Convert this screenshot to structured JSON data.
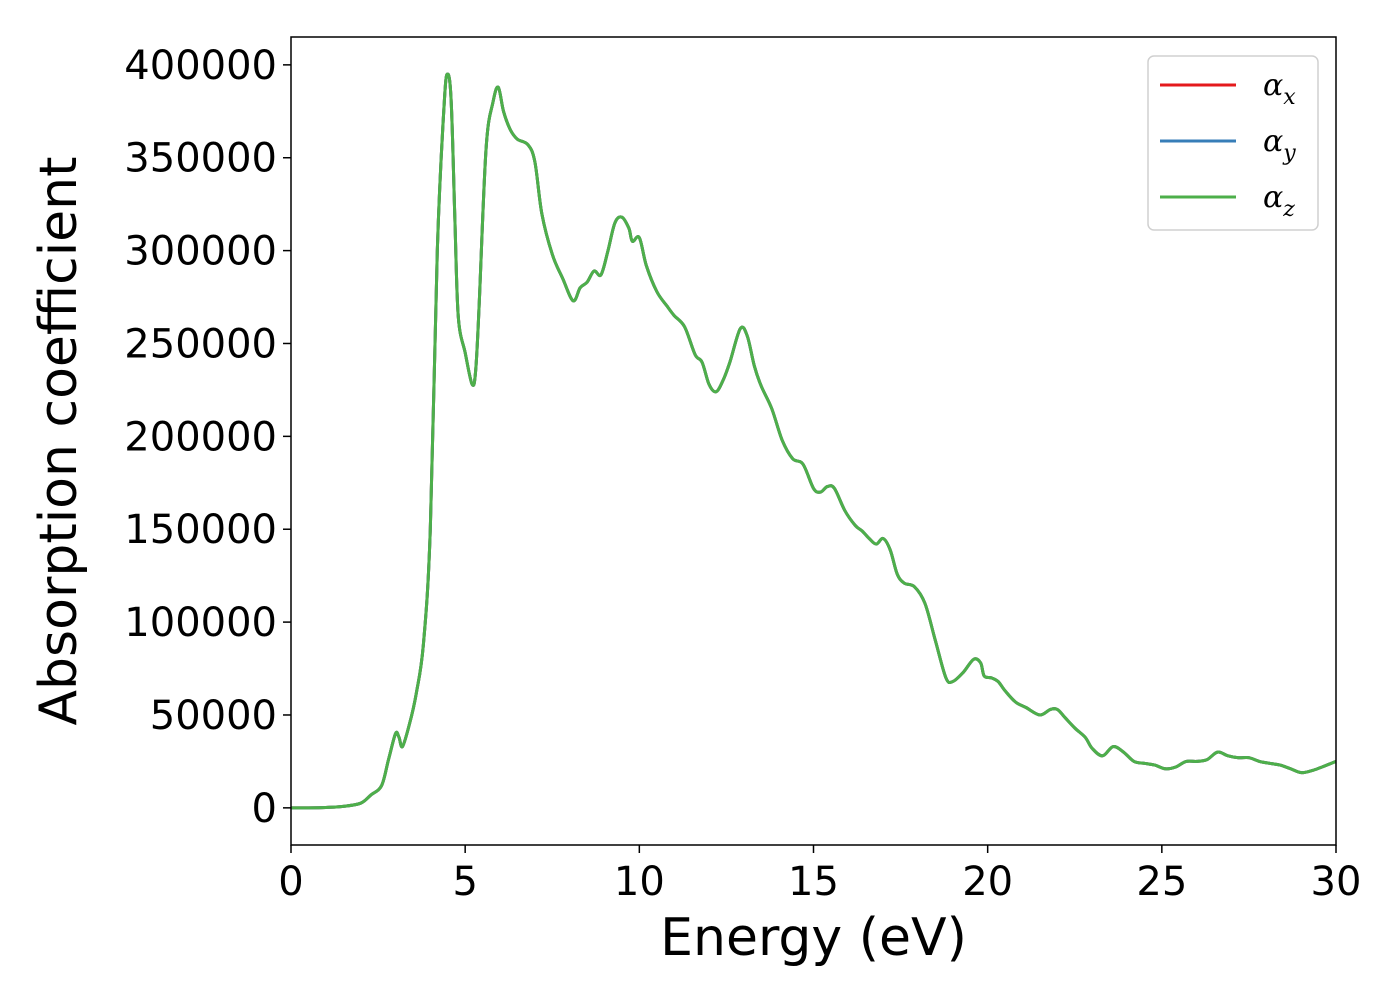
{
  "chart_data": {
    "type": "line",
    "title": "",
    "xlabel": "Energy (eV)",
    "ylabel": "Absorption coefficient",
    "xlim": [
      0,
      30
    ],
    "ylim": [
      -20000,
      415000
    ],
    "xticks": [
      "0",
      "5",
      "10",
      "15",
      "20",
      "25",
      "30"
    ],
    "yticks": [
      "0",
      "50000",
      "100000",
      "150000",
      "200000",
      "250000",
      "300000",
      "350000",
      "400000"
    ],
    "grid": false,
    "legend_position": "top-right",
    "series": [
      {
        "name": "α",
        "subscript": "x",
        "color": "#e41a1c"
      },
      {
        "name": "α",
        "subscript": "y",
        "color": "#377eb8"
      },
      {
        "name": "α",
        "subscript": "z",
        "color": "#4daf4a"
      }
    ],
    "x": [
      0,
      0.5,
      1.0,
      1.5,
      2.0,
      2.3,
      2.6,
      2.8,
      3.0,
      3.1,
      3.2,
      3.4,
      3.6,
      3.8,
      4.0,
      4.2,
      4.4,
      4.5,
      4.6,
      4.7,
      4.8,
      5.0,
      5.2,
      5.3,
      5.4,
      5.6,
      5.8,
      5.95,
      6.1,
      6.3,
      6.5,
      6.8,
      7.0,
      7.2,
      7.5,
      7.8,
      8.1,
      8.3,
      8.5,
      8.7,
      8.9,
      9.1,
      9.3,
      9.5,
      9.7,
      9.8,
      10.0,
      10.2,
      10.5,
      10.8,
      11.0,
      11.3,
      11.6,
      11.8,
      12.0,
      12.2,
      12.4,
      12.6,
      12.9,
      13.1,
      13.3,
      13.5,
      13.8,
      14.1,
      14.4,
      14.7,
      15.0,
      15.2,
      15.4,
      15.6,
      15.9,
      16.2,
      16.4,
      16.6,
      16.8,
      17.0,
      17.2,
      17.4,
      17.6,
      17.9,
      18.2,
      18.5,
      18.8,
      19.0,
      19.3,
      19.6,
      19.8,
      19.9,
      20.1,
      20.3,
      20.5,
      20.8,
      21.1,
      21.5,
      21.8,
      22.0,
      22.2,
      22.5,
      22.8,
      23.0,
      23.3,
      23.6,
      23.9,
      24.2,
      24.5,
      24.8,
      25.1,
      25.4,
      25.7,
      26.0,
      26.3,
      26.6,
      26.9,
      27.2,
      27.5,
      27.8,
      28.1,
      28.4,
      28.7,
      29.0,
      29.3,
      29.6,
      30.0
    ],
    "y": [
      0,
      0,
      200,
      800,
      2500,
      7000,
      12000,
      26000,
      40000,
      38000,
      33000,
      45000,
      62000,
      88000,
      150000,
      300000,
      380000,
      395000,
      380000,
      320000,
      265000,
      245000,
      228000,
      235000,
      270000,
      355000,
      380000,
      388000,
      375000,
      365000,
      360000,
      357000,
      348000,
      320000,
      298000,
      285000,
      273000,
      280000,
      283000,
      289000,
      287000,
      300000,
      315000,
      318000,
      312000,
      305000,
      307000,
      292000,
      278000,
      270000,
      265000,
      259000,
      244000,
      240000,
      228000,
      224000,
      230000,
      240000,
      258000,
      254000,
      238000,
      227000,
      215000,
      198000,
      188000,
      185000,
      172000,
      170000,
      173000,
      172000,
      160000,
      152000,
      149000,
      145000,
      142000,
      145000,
      139000,
      126000,
      121000,
      119000,
      110000,
      90000,
      70000,
      68000,
      73000,
      80000,
      78000,
      71000,
      70000,
      68000,
      63000,
      57000,
      54000,
      50000,
      53000,
      53000,
      49000,
      43000,
      38000,
      32000,
      28000,
      33000,
      30000,
      25000,
      24000,
      23000,
      21000,
      22000,
      25000,
      25000,
      26000,
      30000,
      28000,
      27000,
      27000,
      25000,
      24000,
      23000,
      21000,
      19000,
      20000,
      22000,
      25000
    ]
  }
}
